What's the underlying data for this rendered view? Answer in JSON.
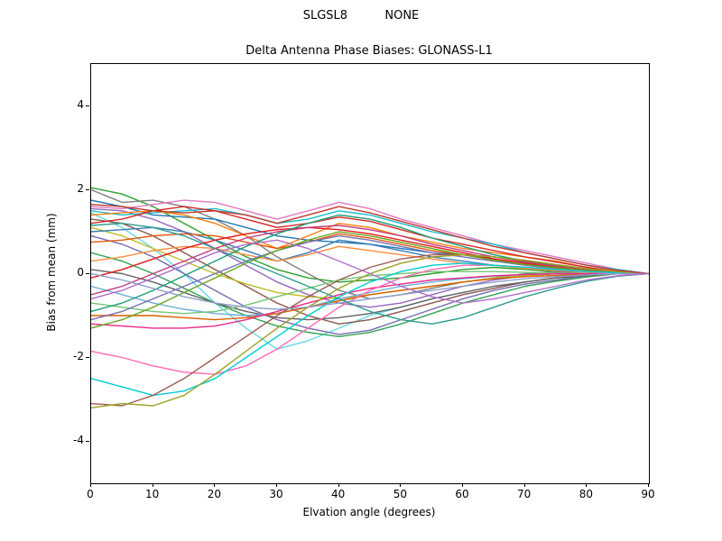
{
  "header": {
    "suptitle": "SLGSL8          NONE"
  },
  "chart_data": {
    "type": "line",
    "title": "Delta Antenna Phase Biases: GLONASS-L1",
    "xlabel": "Elvation angle (degrees)",
    "ylabel": "Bias from mean (mm)",
    "xlim": [
      0,
      90
    ],
    "ylim": [
      -5,
      5
    ],
    "xticks": [
      0,
      10,
      20,
      30,
      40,
      50,
      60,
      70,
      80,
      90
    ],
    "yticks": [
      -4,
      -2,
      0,
      2,
      4
    ],
    "grid": false,
    "legend_position": "none",
    "x": [
      0,
      5,
      10,
      15,
      20,
      25,
      30,
      35,
      40,
      45,
      50,
      55,
      60,
      65,
      70,
      75,
      80,
      85,
      90
    ],
    "series": [
      {
        "color": "#2ca02c",
        "values": [
          2.05,
          1.9,
          1.6,
          1.2,
          0.8,
          0.4,
          0.1,
          -0.1,
          -0.2,
          -0.15,
          -0.1,
          0.0,
          0.1,
          0.15,
          0.1,
          0.05,
          0.0,
          0.0,
          0.0
        ]
      },
      {
        "color": "#7f7f7f",
        "values": [
          2.0,
          1.7,
          1.75,
          1.6,
          1.3,
          0.9,
          0.4,
          0.0,
          -0.4,
          -0.6,
          -0.5,
          -0.35,
          -0.2,
          -0.1,
          0.0,
          0.05,
          0.05,
          0.0,
          0.0
        ]
      },
      {
        "color": "#1f77b4",
        "values": [
          1.75,
          1.6,
          1.4,
          1.35,
          1.3,
          1.1,
          0.9,
          0.8,
          0.75,
          0.7,
          0.6,
          0.5,
          0.45,
          0.4,
          0.3,
          0.2,
          0.1,
          0.05,
          0.0
        ]
      },
      {
        "color": "#e377c2",
        "values": [
          1.6,
          1.55,
          1.65,
          1.75,
          1.7,
          1.5,
          1.3,
          1.5,
          1.7,
          1.55,
          1.3,
          1.1,
          0.9,
          0.7,
          0.55,
          0.4,
          0.25,
          0.1,
          0.0
        ]
      },
      {
        "color": "#9467bd",
        "values": [
          1.55,
          1.5,
          1.3,
          1.0,
          0.6,
          0.2,
          -0.2,
          -0.5,
          -0.7,
          -0.8,
          -0.7,
          -0.5,
          -0.3,
          -0.15,
          -0.05,
          0.0,
          0.0,
          0.0,
          0.0
        ]
      },
      {
        "color": "#17becf",
        "values": [
          1.5,
          1.4,
          1.45,
          1.5,
          1.55,
          1.4,
          1.2,
          1.3,
          1.5,
          1.4,
          1.2,
          1.0,
          0.85,
          0.7,
          0.5,
          0.35,
          0.2,
          0.1,
          0.0
        ]
      },
      {
        "color": "#66d9e8",
        "values": [
          1.45,
          1.1,
          0.6,
          0.0,
          -0.7,
          -1.3,
          -1.8,
          -1.6,
          -1.3,
          -1.0,
          -0.8,
          -0.6,
          -0.45,
          -0.3,
          -0.2,
          -0.1,
          -0.05,
          0.0,
          0.0
        ]
      },
      {
        "color": "#ff7f0e",
        "values": [
          1.4,
          1.45,
          1.5,
          1.4,
          1.2,
          0.9,
          0.6,
          0.9,
          1.2,
          1.1,
          0.9,
          0.75,
          0.6,
          0.5,
          0.4,
          0.3,
          0.15,
          0.05,
          0.0
        ]
      },
      {
        "color": "#8c564b",
        "values": [
          1.3,
          1.2,
          0.9,
          0.5,
          0.1,
          -0.3,
          -0.7,
          -1.0,
          -1.2,
          -1.1,
          -0.9,
          -0.7,
          -0.5,
          -0.35,
          -0.2,
          -0.1,
          -0.05,
          0.0,
          0.0
        ]
      },
      {
        "color": "#d62728",
        "values": [
          1.2,
          1.3,
          1.5,
          1.6,
          1.5,
          1.3,
          1.1,
          1.2,
          1.35,
          1.25,
          1.05,
          0.85,
          0.7,
          0.55,
          0.4,
          0.28,
          0.15,
          0.05,
          0.0
        ]
      },
      {
        "color": "#bcbd22",
        "values": [
          1.1,
          0.9,
          0.6,
          0.3,
          0.0,
          -0.25,
          -0.45,
          -0.55,
          -0.6,
          -0.5,
          -0.4,
          -0.3,
          -0.2,
          -0.1,
          -0.05,
          0.0,
          0.0,
          0.0,
          0.0
        ]
      },
      {
        "color": "#377eb8",
        "values": [
          1.0,
          1.05,
          1.1,
          1.0,
          0.8,
          0.55,
          0.3,
          0.5,
          0.8,
          0.7,
          0.55,
          0.4,
          0.3,
          0.2,
          0.15,
          0.1,
          0.05,
          0.0,
          0.0
        ]
      },
      {
        "color": "#756bb1",
        "values": [
          0.9,
          0.7,
          0.4,
          0.0,
          -0.4,
          -0.8,
          -1.1,
          -1.3,
          -1.45,
          -1.35,
          -1.1,
          -0.85,
          -0.6,
          -0.4,
          -0.25,
          -0.15,
          -0.05,
          0.0,
          0.0
        ]
      },
      {
        "color": "#e6550d",
        "values": [
          0.75,
          0.8,
          0.9,
          0.95,
          0.9,
          0.75,
          0.6,
          0.75,
          0.95,
          0.85,
          0.7,
          0.55,
          0.45,
          0.35,
          0.25,
          0.15,
          0.1,
          0.05,
          0.0
        ]
      },
      {
        "color": "#31a354",
        "values": [
          0.5,
          0.3,
          0.0,
          -0.35,
          -0.7,
          -1.0,
          -1.25,
          -1.4,
          -1.5,
          -1.4,
          -1.2,
          -0.95,
          -0.7,
          -0.5,
          -0.3,
          -0.18,
          -0.08,
          0.0,
          0.0
        ]
      },
      {
        "color": "#fd8d3c",
        "values": [
          0.3,
          0.4,
          0.55,
          0.65,
          0.6,
          0.45,
          0.3,
          0.45,
          0.65,
          0.55,
          0.45,
          0.35,
          0.25,
          0.2,
          0.12,
          0.08,
          0.04,
          0.0,
          0.0
        ]
      },
      {
        "color": "#636363",
        "values": [
          0.1,
          0.0,
          -0.2,
          -0.45,
          -0.7,
          -0.9,
          -1.05,
          -1.1,
          -1.05,
          -0.95,
          -0.8,
          -0.6,
          -0.45,
          -0.3,
          -0.2,
          -0.1,
          -0.05,
          0.0,
          0.0
        ]
      },
      {
        "color": "#e41a1c",
        "values": [
          -0.1,
          0.1,
          0.35,
          0.6,
          0.8,
          0.95,
          1.05,
          1.1,
          1.05,
          0.95,
          0.8,
          0.65,
          0.5,
          0.35,
          0.25,
          0.15,
          0.08,
          0.03,
          0.0
        ]
      },
      {
        "color": "#6baed6",
        "values": [
          -0.3,
          -0.5,
          -0.7,
          -0.85,
          -0.95,
          -1.0,
          -0.95,
          -0.8,
          -0.6,
          -0.45,
          -0.3,
          -0.2,
          -0.12,
          -0.06,
          -0.02,
          0.0,
          0.0,
          0.0,
          0.0
        ]
      },
      {
        "color": "#c23b80",
        "values": [
          -0.5,
          -0.3,
          0.0,
          0.3,
          0.6,
          0.85,
          1.0,
          1.1,
          1.15,
          1.05,
          0.9,
          0.7,
          0.55,
          0.4,
          0.28,
          0.18,
          0.1,
          0.04,
          0.0
        ]
      },
      {
        "color": "#74c476",
        "values": [
          -0.7,
          -0.8,
          -0.9,
          -0.95,
          -0.9,
          -0.75,
          -0.55,
          -0.35,
          -0.15,
          -0.05,
          0.0,
          0.05,
          0.05,
          0.05,
          0.03,
          0.02,
          0.01,
          0.0,
          0.0
        ]
      },
      {
        "color": "#1b9e77",
        "values": [
          -0.9,
          -0.7,
          -0.4,
          -0.05,
          0.3,
          0.65,
          0.95,
          1.2,
          1.4,
          1.3,
          1.1,
          0.85,
          0.65,
          0.45,
          0.3,
          0.2,
          0.1,
          0.04,
          0.0
        ]
      },
      {
        "color": "#d95f02",
        "values": [
          -1.0,
          -1.0,
          -1.0,
          -1.05,
          -1.1,
          -1.05,
          -0.95,
          -0.8,
          -0.65,
          -0.5,
          -0.4,
          -0.3,
          -0.2,
          -0.12,
          -0.07,
          -0.04,
          -0.02,
          0.0,
          0.0
        ]
      },
      {
        "color": "#7570b3",
        "values": [
          -1.1,
          -0.9,
          -0.6,
          -0.3,
          0.0,
          0.3,
          0.55,
          0.75,
          0.9,
          0.8,
          0.65,
          0.5,
          0.4,
          0.3,
          0.2,
          0.12,
          0.06,
          0.02,
          0.0
        ]
      },
      {
        "color": "#e7298a",
        "values": [
          -1.2,
          -1.25,
          -1.3,
          -1.3,
          -1.25,
          -1.1,
          -0.9,
          -0.7,
          -0.5,
          -0.35,
          -0.25,
          -0.15,
          -0.1,
          -0.05,
          -0.02,
          0.0,
          0.0,
          0.0,
          0.0
        ]
      },
      {
        "color": "#66a61e",
        "values": [
          -1.3,
          -1.1,
          -0.8,
          -0.45,
          -0.1,
          0.25,
          0.55,
          0.8,
          1.0,
          0.9,
          0.75,
          0.6,
          0.45,
          0.32,
          0.22,
          0.14,
          0.07,
          0.02,
          0.0
        ]
      },
      {
        "color": "#ff69b4",
        "values": [
          -1.85,
          -2.0,
          -2.2,
          -2.35,
          -2.4,
          -2.2,
          -1.8,
          -1.3,
          -0.8,
          -0.4,
          -0.1,
          0.1,
          0.2,
          0.2,
          0.15,
          0.1,
          0.05,
          0.0,
          0.0
        ]
      },
      {
        "color": "#00ced1",
        "values": [
          -2.5,
          -2.7,
          -2.9,
          -2.8,
          -2.5,
          -2.0,
          -1.5,
          -1.0,
          -0.55,
          -0.2,
          0.05,
          0.2,
          0.25,
          0.2,
          0.15,
          0.1,
          0.05,
          0.02,
          0.0
        ]
      },
      {
        "color": "#a05d56",
        "values": [
          -3.1,
          -3.15,
          -2.9,
          -2.5,
          -2.0,
          -1.5,
          -1.0,
          -0.55,
          -0.15,
          0.15,
          0.35,
          0.45,
          0.45,
          0.4,
          0.3,
          0.2,
          0.1,
          0.05,
          0.0
        ]
      },
      {
        "color": "#9aa121",
        "values": [
          -3.2,
          -3.1,
          -3.15,
          -2.9,
          -2.4,
          -1.85,
          -1.3,
          -0.8,
          -0.35,
          0.0,
          0.25,
          0.4,
          0.45,
          0.4,
          0.32,
          0.22,
          0.12,
          0.05,
          0.0
        ]
      },
      {
        "color": "#c0392b",
        "values": [
          1.65,
          1.6,
          1.5,
          1.45,
          1.5,
          1.4,
          1.2,
          1.4,
          1.6,
          1.45,
          1.25,
          1.05,
          0.85,
          0.65,
          0.5,
          0.35,
          0.2,
          0.08,
          0.0
        ]
      },
      {
        "color": "#8da0cb",
        "values": [
          0.0,
          -0.15,
          -0.35,
          -0.55,
          -0.7,
          -0.8,
          -0.85,
          -0.8,
          -0.7,
          -0.6,
          -0.5,
          -0.4,
          -0.3,
          -0.2,
          -0.12,
          -0.07,
          -0.03,
          0.0,
          0.0
        ]
      },
      {
        "color": "#2a9d8f",
        "values": [
          1.15,
          1.2,
          1.1,
          0.9,
          0.6,
          0.3,
          0.0,
          -0.3,
          -0.6,
          -0.9,
          -1.1,
          -1.2,
          -1.05,
          -0.8,
          -0.55,
          -0.35,
          -0.18,
          -0.06,
          0.0
        ]
      },
      {
        "color": "#b06fc9",
        "values": [
          -0.6,
          -0.4,
          -0.1,
          0.2,
          0.5,
          0.7,
          0.8,
          0.6,
          0.3,
          0.0,
          -0.3,
          -0.55,
          -0.7,
          -0.6,
          -0.45,
          -0.3,
          -0.15,
          -0.05,
          0.0
        ]
      }
    ]
  }
}
